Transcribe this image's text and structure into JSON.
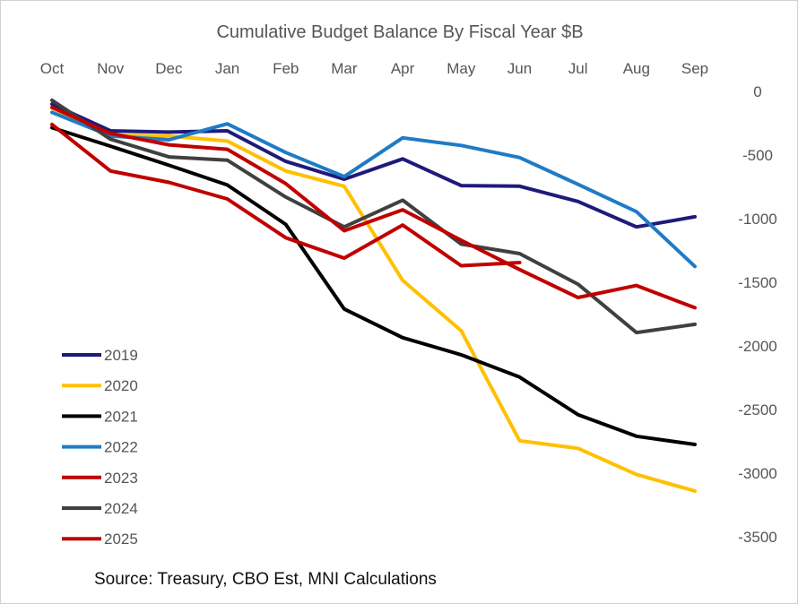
{
  "chart_data": {
    "type": "line",
    "title": "Cumulative Budget Balance By Fiscal Year $B",
    "categories": [
      "Oct",
      "Nov",
      "Dec",
      "Jan",
      "Feb",
      "Mar",
      "Apr",
      "May",
      "Jun",
      "Jul",
      "Aug",
      "Sep"
    ],
    "y_ticks": [
      "0",
      "-500",
      "-1000",
      "-1500",
      "-2000",
      "-2500",
      "-3000",
      "-3500"
    ],
    "y_tick_values": [
      0,
      -500,
      -1000,
      -1500,
      -2000,
      -2500,
      -3000,
      -3500
    ],
    "ylim": [
      -3500,
      0
    ],
    "xlabel": "",
    "ylabel": "",
    "x_axis_position": "top",
    "y_axis_position": "right",
    "grid": false,
    "legend_position": "left",
    "source": "Source: Treasury, CBO Est, MNI Calculations",
    "series": [
      {
        "name": "2019",
        "color": "#1f1a7a",
        "values": [
          -100,
          -310,
          -320,
          -310,
          -550,
          -690,
          -530,
          -740,
          -745,
          -865,
          -1065,
          -985
        ]
      },
      {
        "name": "2020",
        "color": "#ffc000",
        "values": [
          -130,
          -345,
          -350,
          -390,
          -625,
          -745,
          -1485,
          -1880,
          -2745,
          -2805,
          -3010,
          -3140
        ]
      },
      {
        "name": "2021",
        "color": "#000000",
        "values": [
          -285,
          -430,
          -580,
          -735,
          -1045,
          -1710,
          -1935,
          -2070,
          -2245,
          -2540,
          -2710,
          -2775
        ]
      },
      {
        "name": "2022",
        "color": "#1f7bc6",
        "values": [
          -165,
          -350,
          -380,
          -255,
          -480,
          -670,
          -365,
          -425,
          -520,
          -730,
          -945,
          -1375
        ]
      },
      {
        "name": "2023",
        "color": "#c00000",
        "values": [
          -260,
          -625,
          -715,
          -845,
          -1150,
          -1310,
          -1050,
          -1370,
          -1345,
          null,
          null,
          null
        ]
      },
      {
        "name": "2024",
        "color": "#404040",
        "values": [
          -70,
          -375,
          -515,
          -540,
          -830,
          -1065,
          -855,
          -1200,
          -1275,
          -1515,
          -1895,
          -1830
        ]
      },
      {
        "name": "2025",
        "color": "#c00000",
        "values": [
          -125,
          -330,
          -420,
          -455,
          -725,
          -1095,
          -930,
          -1170,
          -1400,
          -1620,
          -1525,
          -1700
        ]
      }
    ]
  }
}
